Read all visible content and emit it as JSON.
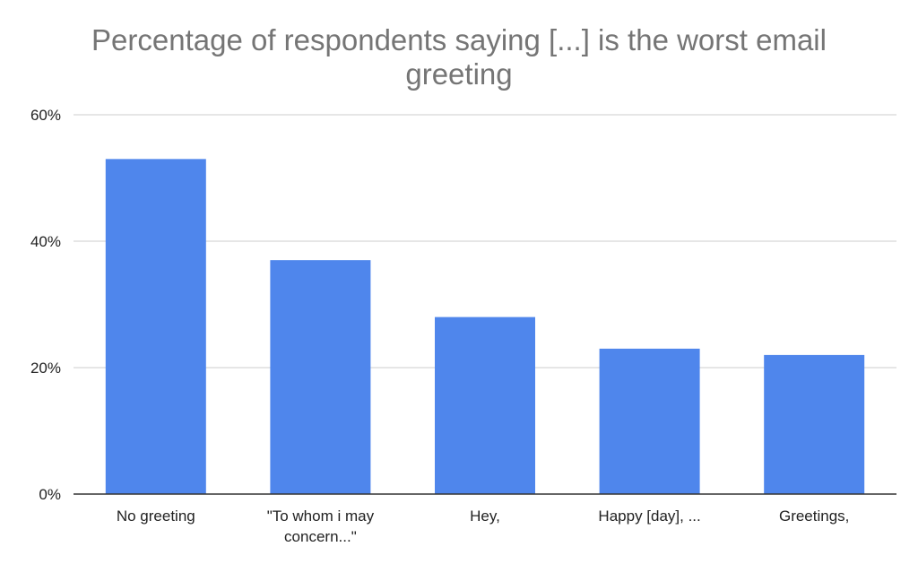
{
  "chart_data": {
    "type": "bar",
    "title_lines": [
      "Percentage of respondents saying [...] is the worst email",
      "greeting"
    ],
    "xlabel": "",
    "ylabel": "",
    "categories": [
      [
        "No greeting"
      ],
      [
        "\"To whom i may",
        "concern...\""
      ],
      [
        "Hey,"
      ],
      [
        "Happy [day], ..."
      ],
      [
        "Greetings,"
      ]
    ],
    "values": [
      53,
      37,
      28,
      23,
      22
    ],
    "ylim": [
      0,
      60
    ],
    "yticks": [
      0,
      20,
      40,
      60
    ],
    "ytick_labels": [
      "0%",
      "20%",
      "40%",
      "60%"
    ],
    "grid": true,
    "bar_color": "#4f86ec",
    "grid_color": "#cccccc",
    "axis_color": "#333333",
    "legend": "none"
  }
}
